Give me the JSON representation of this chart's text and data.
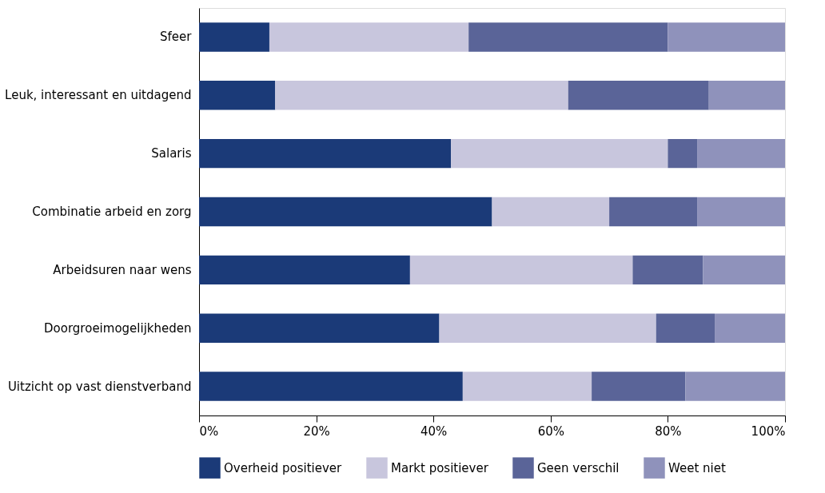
{
  "chart_data": {
    "type": "bar",
    "orientation": "horizontal",
    "stacked": true,
    "categories": [
      "Sfeer",
      "Leuk, interessant en uitdagend",
      "Salaris",
      "Combinatie arbeid en zorg",
      "Arbeidsuren naar wens",
      "Doorgroeimogelijkheden",
      "Uitzicht op vast dienstverband"
    ],
    "series": [
      {
        "name": "Overheid positiever",
        "color": "#1b3a78",
        "values": [
          12,
          13,
          43,
          50,
          36,
          41,
          45
        ]
      },
      {
        "name": "Markt positiever",
        "color": "#c8c6dd",
        "values": [
          34,
          50,
          37,
          20,
          38,
          37,
          22
        ]
      },
      {
        "name": "Geen verschil",
        "color": "#5a6498",
        "values": [
          34,
          24,
          5,
          15,
          12,
          10,
          16
        ]
      },
      {
        "name": "Weet niet",
        "color": "#8f92bb",
        "values": [
          20,
          13,
          15,
          15,
          14,
          12,
          17
        ]
      }
    ],
    "xlim": [
      0,
      100
    ],
    "xticks": [
      {
        "value": 0,
        "label": "0%"
      },
      {
        "value": 20,
        "label": "20%"
      },
      {
        "value": 40,
        "label": "40%"
      },
      {
        "value": 60,
        "label": "60%"
      },
      {
        "value": 80,
        "label": "80%"
      },
      {
        "value": 100,
        "label": "100%"
      }
    ],
    "grid": false,
    "legend": "bottom"
  }
}
